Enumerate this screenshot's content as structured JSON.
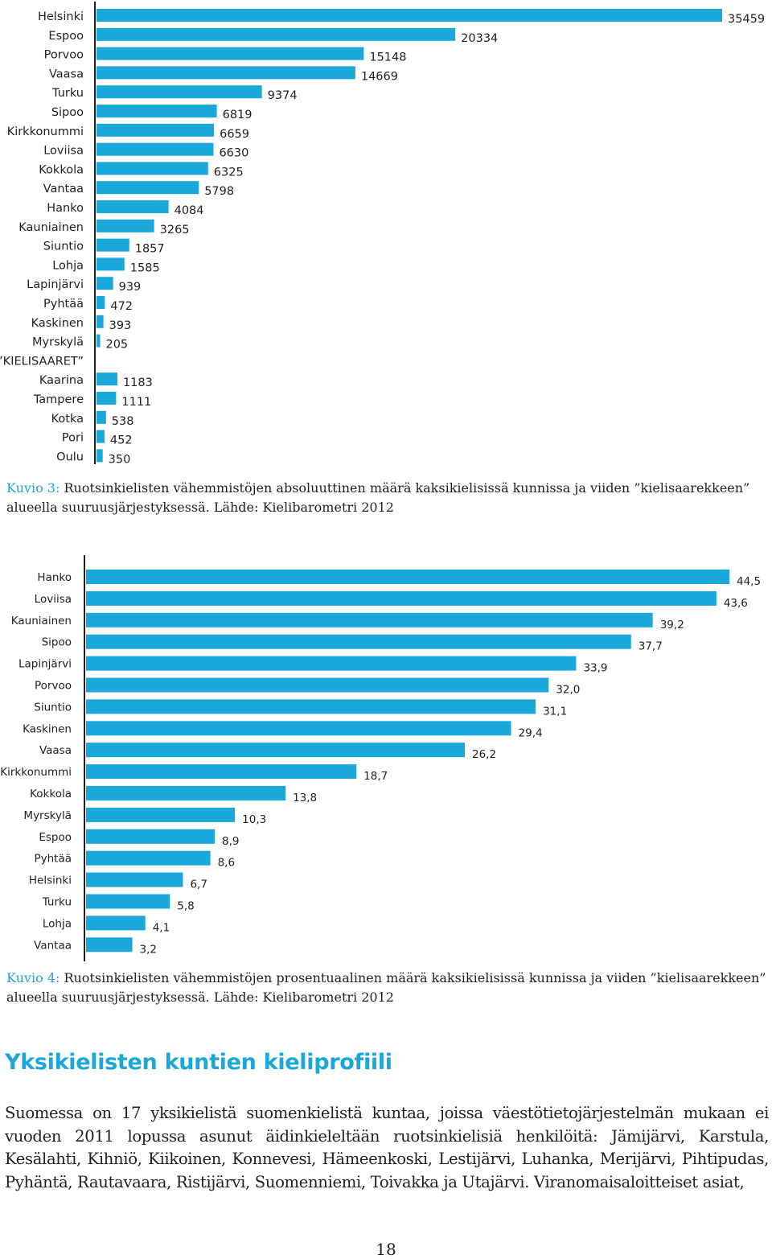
{
  "chart_data": [
    {
      "type": "bar",
      "orientation": "horizontal",
      "categories": [
        "Helsinki",
        "Espoo",
        "Porvoo",
        "Vaasa",
        "Turku",
        "Sipoo",
        "Kirkkonummi",
        "Loviisa",
        "Kokkola",
        "Vantaa",
        "Hanko",
        "Kauniainen",
        "Siuntio",
        "Lohja",
        "Lapinjärvi",
        "Pyhtää",
        "Kaskinen",
        "Myrskylä",
        "”KIELISAARET”",
        "Kaarina",
        "Tampere",
        "Kotka",
        "Pori",
        "Oulu"
      ],
      "values": [
        35459,
        20334,
        15148,
        14669,
        9374,
        6819,
        6659,
        6630,
        6325,
        5798,
        4084,
        3265,
        1857,
        1585,
        939,
        472,
        393,
        205,
        null,
        1183,
        1111,
        538,
        452,
        350
      ],
      "value_labels": [
        "35459",
        "20334",
        "15148",
        "14669",
        "9374",
        "6819",
        "6659",
        "6630",
        "6325",
        "5798",
        "4084",
        "3265",
        "1857",
        "1585",
        "939",
        "472",
        "393",
        "205",
        "",
        "1183",
        "1111",
        "538",
        "452",
        "350"
      ],
      "xlim": [
        0,
        35459
      ],
      "grid": false,
      "color": "#1aa7d9"
    },
    {
      "type": "bar",
      "orientation": "horizontal",
      "categories": [
        "Hanko",
        "Loviisa",
        "Kauniainen",
        "Sipoo",
        "Lapinjärvi",
        "Porvoo",
        "Siuntio",
        "Kaskinen",
        "Vaasa",
        "Kirkkonummi",
        "Kokkola",
        "Myrskylä",
        "Espoo",
        "Pyhtää",
        "Helsinki",
        "Turku",
        "Lohja",
        "Vantaa"
      ],
      "values": [
        44.5,
        43.6,
        39.2,
        37.7,
        33.9,
        32.0,
        31.1,
        29.4,
        26.2,
        18.7,
        13.8,
        10.3,
        8.9,
        8.6,
        6.7,
        5.8,
        4.1,
        3.2
      ],
      "value_labels": [
        "44,5",
        "43,6",
        "39,2",
        "37,7",
        "33,9",
        "32,0",
        "31,1",
        "29,4",
        "26,2",
        "18,7",
        "13,8",
        "10,3",
        "8,9",
        "8,6",
        "6,7",
        "5,8",
        "4,1",
        "3,2"
      ],
      "xlim": [
        0,
        44.5
      ],
      "grid": false,
      "color": "#1aa7d9"
    }
  ],
  "captions": {
    "fig3_label": "Kuvio 3:",
    "fig3_text": "Ruotsinkielisten vähemmistöjen absoluuttinen määrä kaksikielisissä kunnissa ja viiden ”kielisaarekkeen” alueella suuruusjärjestyksessä. Lähde: Kielibarometri 2012",
    "fig4_label": "Kuvio 4:",
    "fig4_text": "Ruotsinkielisten vähemmistöjen prosentuaalinen määrä kaksikielisissä kunnissa ja viiden ”kielisaarek­keen” alueella suuruusjärjestyksessä. Lähde: Kielibarometri 2012"
  },
  "section": {
    "heading": "Yksikielisten kuntien kieliprofiili",
    "paragraph": "Suomessa on 17 yksikielistä suomenkielistä kuntaa, joissa väestötietojärjestelmän mukaan ei vuoden 2011 lopussa asunut äidinkieleltään ruotsinkielisiä henkilöitä: Jämijärvi, Karstula, Kesälahti, Kihniö, Kiikoinen, Konnevesi, Hämeenkoski, Lestijärvi, Luhanka, Merijärvi, Pihtipudas, Pyhäntä, Rautavaara, Ristijärvi, Suomenniemi, Toivakka ja Utajärvi. Viranomaisaloitteiset asiat,"
  },
  "page_number": "18"
}
